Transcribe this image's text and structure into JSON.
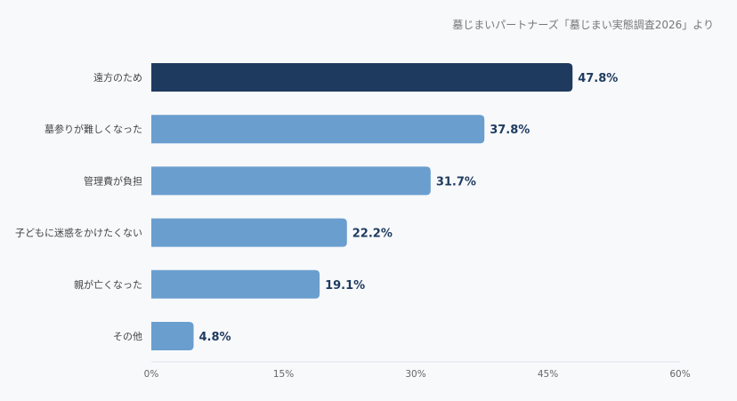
{
  "source_note": "墓じまいパートナーズ「墓じまい実態調査2026」より",
  "chart_data": {
    "type": "bar",
    "orientation": "horizontal",
    "categories": [
      "遠方のため",
      "墓参りが難しくなった",
      "管理費が負担",
      "子どもに迷惑をかけたくない",
      "親が亡くなった",
      "その他"
    ],
    "values": [
      47.8,
      37.8,
      31.7,
      22.2,
      19.1,
      4.8
    ],
    "data_labels": [
      "47.8%",
      "37.8%",
      "31.7%",
      "22.2%",
      "19.1%",
      "4.8%"
    ],
    "xlim": [
      0,
      60
    ],
    "x_ticks": [
      0,
      15,
      30,
      45,
      60
    ],
    "x_tick_labels": [
      "0%",
      "15%",
      "30%",
      "45%",
      "60%"
    ],
    "grid": false,
    "colors": {
      "highlight": "#1f3a5f",
      "default": "#6a9ecf"
    }
  }
}
